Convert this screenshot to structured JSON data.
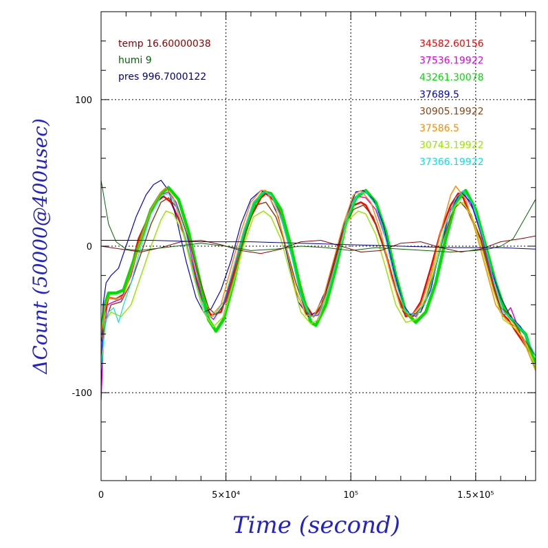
{
  "chart_data": {
    "type": "line",
    "xlabel": "Time (second)",
    "ylabel": "ΔCount (50000@400usec)",
    "xlim": [
      0,
      174000
    ],
    "ylim": [
      -160,
      160
    ],
    "x_ticks": [
      {
        "value": 0,
        "label": "0"
      },
      {
        "value": 50000,
        "label": "5×10⁴"
      },
      {
        "value": 100000,
        "label": "10⁵"
      },
      {
        "value": 150000,
        "label": "1.5×10⁵"
      }
    ],
    "y_ticks": [
      {
        "value": -100,
        "label": "-100"
      },
      {
        "value": 0,
        "label": "0"
      },
      {
        "value": 100,
        "label": "100"
      }
    ],
    "grid": true,
    "env_legend": [
      {
        "text": "temp 16.60000038",
        "color": "#8b0000"
      },
      {
        "text": "humi 9",
        "color": "#006400"
      },
      {
        "text": "pres 996.7000122",
        "color": "#000080"
      }
    ],
    "series_legend": [
      {
        "text": "34582.60156",
        "color": "#ff0000"
      },
      {
        "text": "37536.19922",
        "color": "#e000e0"
      },
      {
        "text": "43261.30078",
        "color": "#00e000"
      },
      {
        "text": "37689.5",
        "color": "#0000cc"
      },
      {
        "text": "30905.19922",
        "color": "#8b4513"
      },
      {
        "text": "37586.5",
        "color": "#ff8c00"
      },
      {
        "text": "30743.19922",
        "color": "#99e600"
      },
      {
        "text": "37366.19922",
        "color": "#00e5e5"
      }
    ],
    "series": [
      {
        "label": "34582.60156",
        "color": "#ff0000",
        "width": 2.5,
        "x": [
          0,
          1500,
          3000,
          6000,
          9000,
          12000,
          15000,
          19000,
          22000,
          25000,
          28000,
          32000,
          36000,
          40000,
          44000,
          48000,
          52000,
          56000,
          60000,
          64000,
          66000,
          70000,
          74000,
          78000,
          82000,
          85000,
          88000,
          92000,
          96000,
          100000,
          104000,
          106000,
          110000,
          114000,
          118000,
          122000,
          125000,
          128000,
          132000,
          136000,
          140000,
          143000,
          145000,
          148000,
          152000,
          156000,
          160000,
          163000,
          166000,
          170000,
          174000
        ],
        "y": [
          -55,
          -45,
          -35,
          -36,
          -33,
          -15,
          5,
          20,
          30,
          34,
          30,
          15,
          -10,
          -35,
          -47,
          -45,
          -25,
          0,
          20,
          33,
          36,
          30,
          10,
          -15,
          -40,
          -48,
          -42,
          -20,
          5,
          27,
          30,
          28,
          15,
          -5,
          -30,
          -48,
          -46,
          -38,
          -15,
          10,
          28,
          36,
          33,
          20,
          5,
          -20,
          -45,
          -50,
          -58,
          -68,
          -78
        ]
      },
      {
        "label": "37536.19922",
        "color": "#e000e0",
        "width": 1.5,
        "x": [
          0,
          1000,
          2500,
          5000,
          8000,
          12000,
          16000,
          20000,
          24000,
          27000,
          30000,
          34000,
          38000,
          42000,
          45000,
          49000,
          53000,
          57000,
          61000,
          65000,
          68000,
          72000,
          76000,
          80000,
          84000,
          87000,
          91000,
          95000,
          99000,
          103000,
          106000,
          110000,
          114000,
          118000,
          122000,
          126000,
          130000,
          134000,
          138000,
          142000,
          145000,
          149000,
          153000,
          157000,
          161000,
          164000,
          168000,
          174000
        ],
        "y": [
          -105,
          -60,
          -40,
          -38,
          -36,
          -20,
          5,
          25,
          35,
          37,
          30,
          10,
          -20,
          -45,
          -50,
          -40,
          -15,
          10,
          30,
          37,
          35,
          20,
          -5,
          -30,
          -48,
          -47,
          -30,
          -5,
          22,
          34,
          33,
          25,
          5,
          -25,
          -45,
          -48,
          -38,
          -15,
          15,
          33,
          37,
          25,
          3,
          -25,
          -48,
          -42,
          -60,
          -80
        ]
      },
      {
        "label": "43261.30078",
        "color": "#00e000",
        "width": 4.5,
        "x": [
          0,
          1500,
          3000,
          6000,
          9000,
          12000,
          16000,
          20000,
          24000,
          27000,
          31000,
          35000,
          39000,
          43000,
          46000,
          49000,
          53000,
          57000,
          61000,
          65000,
          68000,
          72000,
          76000,
          80000,
          84000,
          86000,
          90000,
          94000,
          98000,
          102000,
          106000,
          110000,
          114000,
          118000,
          122000,
          126000,
          130000,
          134000,
          138000,
          142000,
          146000,
          150000,
          154000,
          158000,
          162000,
          166000,
          170000,
          174000
        ],
        "y": [
          -60,
          -40,
          -32,
          -32,
          -30,
          -15,
          5,
          25,
          36,
          40,
          32,
          10,
          -20,
          -50,
          -58,
          -50,
          -25,
          5,
          28,
          37,
          36,
          25,
          0,
          -30,
          -52,
          -54,
          -40,
          -15,
          15,
          33,
          38,
          30,
          10,
          -20,
          -45,
          -52,
          -45,
          -25,
          5,
          30,
          38,
          25,
          0,
          -25,
          -45,
          -53,
          -60,
          -82
        ]
      },
      {
        "label": "37689.5",
        "color": "#0000cc",
        "width": 1.2,
        "x": [
          0,
          800,
          2000,
          4000,
          7000,
          10000,
          14000,
          18000,
          21000,
          24000,
          27000,
          30000,
          34000,
          38000,
          41000,
          44000,
          48000,
          52000,
          56000,
          60000,
          64000,
          67000,
          71000,
          75000,
          79000,
          83000,
          86000,
          90000,
          94000,
          98000,
          102000,
          105000,
          109000,
          113000,
          117000,
          121000,
          124000,
          128000,
          132000,
          136000,
          140000,
          144000,
          148000,
          152000,
          156000,
          160000,
          164000,
          168000,
          174000
        ],
        "y": [
          -95,
          -40,
          -25,
          -20,
          -15,
          0,
          20,
          35,
          42,
          45,
          38,
          20,
          -10,
          -35,
          -45,
          -43,
          -30,
          -10,
          15,
          32,
          38,
          35,
          20,
          -10,
          -38,
          -48,
          -45,
          -30,
          -5,
          20,
          37,
          38,
          32,
          15,
          -15,
          -40,
          -47,
          -45,
          -30,
          0,
          25,
          37,
          30,
          10,
          -15,
          -35,
          -48,
          -55,
          -75
        ]
      },
      {
        "label": "30905.19922",
        "color": "#8b4513",
        "width": 1.5,
        "x": [
          0,
          2000,
          4000,
          8000,
          12000,
          16000,
          20000,
          24000,
          27000,
          31000,
          35000,
          39000,
          43000,
          46000,
          50000,
          54000,
          58000,
          62000,
          66000,
          70000,
          74000,
          78000,
          82000,
          85000,
          89000,
          93000,
          97000,
          101000,
          105000,
          109000,
          113000,
          117000,
          121000,
          125000,
          129000,
          133000,
          137000,
          141000,
          144000,
          148000,
          152000,
          156000,
          160000,
          164000,
          168000,
          174000
        ],
        "y": [
          -65,
          -50,
          -40,
          -38,
          -25,
          -5,
          15,
          30,
          33,
          25,
          5,
          -20,
          -42,
          -47,
          -38,
          -15,
          10,
          28,
          30,
          20,
          0,
          -25,
          -45,
          -48,
          -38,
          -15,
          10,
          25,
          28,
          20,
          0,
          -25,
          -45,
          -48,
          -40,
          -20,
          5,
          25,
          30,
          22,
          5,
          -20,
          -42,
          -47,
          -60,
          -75
        ]
      },
      {
        "label": "37586.5",
        "color": "#ff8c00",
        "width": 1.5,
        "x": [
          0,
          1500,
          3000,
          6000,
          9000,
          12000,
          16000,
          20000,
          24000,
          26000,
          29000,
          33000,
          37000,
          41000,
          44000,
          48000,
          52000,
          56000,
          60000,
          64000,
          66000,
          70000,
          74000,
          78000,
          82000,
          85000,
          89000,
          93000,
          97000,
          101000,
          104000,
          108000,
          112000,
          116000,
          120000,
          124000,
          128000,
          132000,
          136000,
          140000,
          142000,
          146000,
          150000,
          154000,
          158000,
          162000,
          166000,
          170000,
          174000
        ],
        "y": [
          -60,
          -42,
          -35,
          -36,
          -34,
          -18,
          5,
          25,
          37,
          40,
          33,
          10,
          -20,
          -45,
          -48,
          -40,
          -15,
          10,
          30,
          38,
          38,
          25,
          0,
          -30,
          -47,
          -48,
          -35,
          -10,
          15,
          35,
          38,
          30,
          10,
          -20,
          -42,
          -48,
          -40,
          -20,
          10,
          35,
          41,
          32,
          10,
          -15,
          -40,
          -50,
          -55,
          -68,
          -85
        ]
      },
      {
        "label": "30743.19922",
        "color": "#99e600",
        "width": 1.5,
        "x": [
          0,
          2000,
          4000,
          8000,
          12000,
          16000,
          20000,
          24000,
          26000,
          29000,
          33000,
          37000,
          41000,
          45000,
          49000,
          53000,
          57000,
          61000,
          65000,
          68000,
          72000,
          76000,
          80000,
          84000,
          87000,
          91000,
          95000,
          99000,
          103000,
          106000,
          110000,
          114000,
          118000,
          122000,
          126000,
          130000,
          134000,
          138000,
          142000,
          145000,
          149000,
          153000,
          157000,
          161000,
          165000,
          169000,
          174000
        ],
        "y": [
          -80,
          -50,
          -45,
          -48,
          -40,
          -20,
          0,
          18,
          24,
          22,
          8,
          -20,
          -45,
          -55,
          -48,
          -25,
          0,
          20,
          24,
          20,
          5,
          -20,
          -45,
          -53,
          -50,
          -30,
          -5,
          18,
          24,
          22,
          8,
          -15,
          -40,
          -52,
          -50,
          -35,
          -10,
          15,
          28,
          30,
          18,
          -5,
          -30,
          -50,
          -55,
          -62,
          -82
        ]
      },
      {
        "label": "37366.19922",
        "color": "#00e5e5",
        "width": 1.2,
        "x": [
          0,
          1500,
          3000,
          5000,
          7000,
          9000,
          12000,
          16000,
          20000,
          24000,
          27000,
          30000,
          34000,
          38000,
          42000,
          45000,
          49000,
          53000,
          57000,
          61000,
          65000,
          68000,
          72000,
          76000,
          80000,
          84000,
          87000,
          91000,
          95000,
          99000,
          103000,
          106000,
          110000,
          114000,
          118000,
          122000,
          126000,
          130000,
          134000,
          138000,
          142000,
          145000,
          149000,
          153000,
          157000,
          161000,
          165000,
          169000,
          174000
        ],
        "y": [
          -85,
          -55,
          -45,
          -42,
          -52,
          -40,
          -25,
          0,
          22,
          34,
          36,
          28,
          5,
          -25,
          -47,
          -48,
          -38,
          -15,
          10,
          30,
          37,
          35,
          20,
          -5,
          -35,
          -48,
          -46,
          -30,
          -5,
          22,
          36,
          37,
          28,
          5,
          -25,
          -45,
          -47,
          -38,
          -15,
          15,
          33,
          38,
          28,
          5,
          -22,
          -45,
          -50,
          -58,
          -75
        ]
      },
      {
        "label": "temp",
        "color": "#8b0000",
        "width": 1.0,
        "x": [
          0,
          8000,
          16000,
          24000,
          32000,
          40000,
          48000,
          56000,
          64000,
          72000,
          80000,
          88000,
          96000,
          104000,
          112000,
          120000,
          128000,
          136000,
          144000,
          152000,
          160000,
          168000,
          174000
        ],
        "y": [
          0,
          -2,
          -4,
          -1,
          3,
          4,
          1,
          -3,
          -5,
          -2,
          3,
          4,
          0,
          -4,
          -3,
          2,
          3,
          -1,
          -4,
          -2,
          3,
          5,
          7
        ]
      },
      {
        "label": "humi",
        "color": "#006400",
        "width": 1.0,
        "x": [
          0,
          1500,
          3000,
          6000,
          10000,
          15000,
          20000,
          30000,
          40000,
          50000,
          60000,
          70000,
          80000,
          90000,
          100000,
          110000,
          120000,
          130000,
          140000,
          150000,
          155000,
          160000,
          165000,
          170000,
          174000
        ],
        "y": [
          45,
          30,
          15,
          3,
          -2,
          -3,
          -2,
          0,
          2,
          0,
          -3,
          -2,
          0,
          -1,
          -3,
          -1,
          -2,
          -3,
          -4,
          -3,
          -2,
          0,
          5,
          20,
          32
        ]
      },
      {
        "label": "pres",
        "color": "#000080",
        "width": 1.0,
        "x": [
          0,
          20000,
          40000,
          60000,
          80000,
          100000,
          120000,
          140000,
          160000,
          174000
        ],
        "y": [
          4,
          4,
          3,
          3,
          2,
          1,
          0,
          -1,
          -1,
          -2
        ]
      }
    ]
  }
}
